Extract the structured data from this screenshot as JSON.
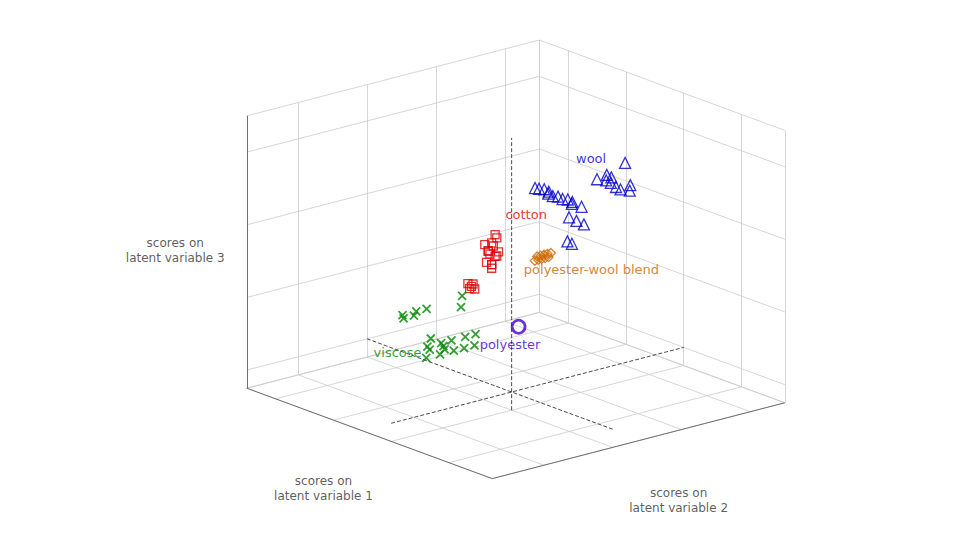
{
  "chart_data": {
    "type": "scatter3d",
    "xlabel": "scores on\nlatent variable 2",
    "ylabel": "scores on\nlatent variable 1",
    "zlabel": "scores on\nlatent variable 3",
    "xlim": [
      -3.5,
      5
    ],
    "ylim": [
      -3.5,
      5
    ],
    "zlim": [
      -0.5,
      7
    ],
    "xticks": [
      -2,
      0,
      2,
      4
    ],
    "yticks": [
      -2,
      0,
      2,
      4
    ],
    "zticks": [
      0,
      2,
      4,
      6
    ],
    "tick_labels": false,
    "grid": true,
    "series": [
      {
        "color": "#dd0000",
        "marker": "square",
        "x": [
          -1.0,
          -1.1,
          -0.9,
          -1.0,
          -0.85,
          -1.05,
          -0.95,
          -1.15,
          -1.0,
          -0.9,
          -1.1,
          -0.85,
          -1.0,
          -1.2,
          -0.8,
          -0.5,
          -0.4,
          -0.6,
          -0.55,
          -0.45
        ],
        "y": [
          -0.5,
          -0.5,
          -0.5,
          -0.5,
          -0.5,
          -0.5,
          -0.5,
          -0.5,
          -0.5,
          -0.5,
          -0.5,
          -0.5,
          -0.5,
          -0.5,
          -0.5,
          0.8,
          0.8,
          0.8,
          0.8,
          0.8
        ],
        "z": [
          4.5,
          4.3,
          4.1,
          3.9,
          4.6,
          4.2,
          4.4,
          4.0,
          3.8,
          4.7,
          4.3,
          4.1,
          3.9,
          4.5,
          4.2,
          2.8,
          2.7,
          2.9,
          2.75,
          2.85
        ]
      },
      {
        "color": "#0000cc",
        "marker": "triangle",
        "x": [
          1.2,
          1.5,
          1.8,
          2.1,
          1.3,
          1.6,
          1.9,
          2.2,
          1.4,
          1.7,
          2.0,
          1.1,
          1.5,
          1.8,
          2.1,
          3.0,
          3.3,
          3.6,
          3.1,
          3.4,
          3.7,
          2.9,
          3.2,
          3.5,
          3.8,
          1.5,
          1.2
        ],
        "y": [
          0.3,
          0.5,
          0.2,
          0.4,
          0.6,
          0.3,
          0.5,
          0.2,
          0.4,
          0.6,
          0.3,
          0.5,
          -0.2,
          -0.1,
          0.0,
          0.3,
          0.5,
          0.2,
          0.4,
          0.6,
          0.3,
          0.5,
          0.2,
          0.4,
          0.6,
          -0.3,
          -0.5
        ],
        "z": [
          5.2,
          5.0,
          4.8,
          4.6,
          5.1,
          4.9,
          4.7,
          4.5,
          5.0,
          4.8,
          4.6,
          5.2,
          4.5,
          4.3,
          4.1,
          5.0,
          4.8,
          4.6,
          5.1,
          4.9,
          4.7,
          5.0,
          4.8,
          4.6,
          5.2,
          3.8,
          4.0
        ]
      },
      {
        "color": "#008800",
        "marker": "x",
        "x": [
          -2.8,
          -2.6,
          -2.4,
          -2.2,
          -2.9,
          -2.7,
          -2.5,
          -2.3,
          -2.1,
          -2.0,
          -1.8,
          -1.6,
          -1.5,
          -1.3,
          -2.5,
          -2.3,
          -2.1,
          -2.0,
          -1.8,
          -0.8,
          -0.6
        ],
        "y": [
          -0.5,
          -0.3,
          -0.5,
          -0.3,
          -0.5,
          -0.3,
          -0.5,
          -0.3,
          -0.5,
          -0.3,
          -0.5,
          -0.3,
          -0.5,
          -0.3,
          0.8,
          1.0,
          0.8,
          1.0,
          0.8,
          0.8,
          1.0
        ],
        "z": [
          2.0,
          2.2,
          2.0,
          1.8,
          1.8,
          2.0,
          1.8,
          2.0,
          1.8,
          2.0,
          1.8,
          2.0,
          1.8,
          2.0,
          2.5,
          2.3,
          2.5,
          2.3,
          2.5,
          2.3,
          2.5
        ]
      },
      {
        "color": "#cc6600",
        "marker": "diamond",
        "x": [
          2.0,
          2.2,
          2.4,
          2.1,
          2.3,
          2.5,
          2.2,
          2.4,
          2.1,
          2.3
        ],
        "y": [
          1.5,
          1.7,
          1.5,
          1.7,
          1.5,
          1.7,
          1.5,
          1.7,
          1.5,
          1.7
        ],
        "z": [
          2.8,
          2.6,
          2.8,
          2.6,
          2.8,
          2.6,
          2.8,
          2.6,
          2.8,
          2.6
        ]
      },
      {
        "color": "#4400cc",
        "marker": "circle",
        "x": [
          2.3
        ],
        "y": [
          2.5
        ],
        "z": [
          0.5
        ]
      }
    ],
    "annotations": [
      {
        "text": "cotton",
        "x": -0.6,
        "y": -0.5,
        "z": 5.0,
        "color": "#dd0000"
      },
      {
        "text": "wool",
        "x": 1.2,
        "y": -0.8,
        "z": 6.2,
        "color": "#0000cc"
      },
      {
        "text": "viscose",
        "x": -2.5,
        "y": 1.8,
        "z": 1.0,
        "color": "#008800"
      },
      {
        "text": "polyester-wool blend",
        "x": 2.2,
        "y": 2.2,
        "z": 2.0,
        "color": "#cc6600"
      },
      {
        "text": "polyester",
        "x": 1.0,
        "y": 2.3,
        "z": 0.2,
        "color": "#4400cc"
      }
    ],
    "lines": [
      {
        "x": [
          0,
          0
        ],
        "y": [
          0,
          0
        ],
        "z": [
          -0.5,
          7
        ],
        "color": "#000000",
        "line_style": "dashed"
      },
      {
        "x": [
          -3.5,
          5
        ],
        "y": [
          0,
          0
        ],
        "z": [
          0,
          0
        ],
        "color": "#000000",
        "line_style": "dashed"
      },
      {
        "x": [
          0,
          0
        ],
        "y": [
          -3.5,
          5
        ],
        "z": [
          0,
          0
        ],
        "color": "#000000",
        "line_style": "dashed"
      }
    ]
  }
}
